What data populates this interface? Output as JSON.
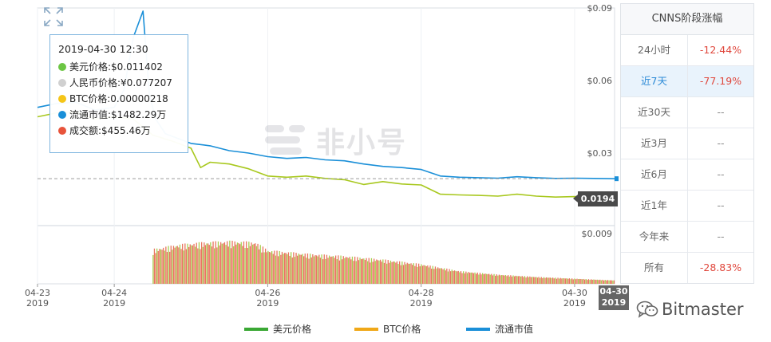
{
  "tooltip": {
    "time": "2019-04-30 12:30",
    "rows": [
      {
        "color": "#6cc644",
        "text": "美元价格:$0.011402"
      },
      {
        "color": "#d0d0d0",
        "text": "人民币价格:¥0.077207"
      },
      {
        "color": "#f5c518",
        "text": "BTC价格:0.00000218"
      },
      {
        "color": "#1a8fd8",
        "text": "流通市值:$1482.29万"
      },
      {
        "color": "#e8543b",
        "text": "成交额:$455.46万"
      }
    ]
  },
  "watermark": {
    "text": "非小号"
  },
  "price_badge": "0.0194",
  "date_badge": {
    "line1": "04-30",
    "line2": "2019"
  },
  "legend": [
    {
      "name": "美元价格",
      "color": "#3aa834"
    },
    {
      "name": "BTC价格",
      "color": "#f0a818"
    },
    {
      "name": "流通市值",
      "color": "#1a8fd8"
    }
  ],
  "period_panel": {
    "title": "CNNS阶段涨幅",
    "rows": [
      {
        "name": "24小时",
        "value": "-12.44%",
        "active": false
      },
      {
        "name": "近7天",
        "value": "-77.19%",
        "active": true
      },
      {
        "name": "近30天",
        "value": "--",
        "active": false
      },
      {
        "name": "近3月",
        "value": "--",
        "active": false
      },
      {
        "name": "近6月",
        "value": "--",
        "active": false
      },
      {
        "name": "近1年",
        "value": "--",
        "active": false
      },
      {
        "name": "今年来",
        "value": "--",
        "active": false
      },
      {
        "name": "所有",
        "value": "-28.83%",
        "active": false
      }
    ]
  },
  "brand": {
    "text": "Bitmaster"
  },
  "chart_data": {
    "type": "line",
    "x_tick_labels": [
      {
        "x": "2019-04-23 00:00",
        "line1": "04-23",
        "line2": "2019"
      },
      {
        "x": "2019-04-24 00:00",
        "line1": "04-24",
        "line2": "2019"
      },
      {
        "x": "2019-04-26 00:00",
        "line1": "04-26",
        "line2": "2019"
      },
      {
        "x": "2019-04-28 00:00",
        "line1": "04-28",
        "line2": "2019"
      },
      {
        "x": "2019-04-30 00:00",
        "line1": "04-30",
        "line2": "2019"
      }
    ],
    "x_range": [
      "2019-04-23 00:00",
      "2019-04-30 12:30"
    ],
    "y_ticks": [
      0.03,
      0.06,
      0.09
    ],
    "y_tick_labels": [
      "$0.03",
      "$0.06",
      "$0.09"
    ],
    "ylim": [
      0.0,
      0.09
    ],
    "volume_tick": {
      "value": 0.009,
      "label": "$0.009"
    },
    "crosshair_y": 0.0194,
    "series": [
      {
        "name": "流通市值",
        "color": "#1a8fd8",
        "points": [
          [
            "2019-04-23 00:00",
            0.0489
          ],
          [
            "2019-04-23 06:00",
            0.0505
          ],
          [
            "2019-04-23 12:00",
            0.051
          ],
          [
            "2019-04-23 18:00",
            0.0478
          ],
          [
            "2019-04-24 00:00",
            0.0489
          ],
          [
            "2019-04-24 03:00",
            0.056
          ],
          [
            "2019-04-24 06:00",
            0.078
          ],
          [
            "2019-04-24 09:00",
            0.0887
          ],
          [
            "2019-04-24 11:00",
            0.054
          ],
          [
            "2019-04-24 13:00",
            0.044
          ],
          [
            "2019-04-24 16:00",
            0.038
          ],
          [
            "2019-04-24 20:00",
            0.036
          ],
          [
            "2019-04-25 00:00",
            0.034
          ],
          [
            "2019-04-25 06:00",
            0.033
          ],
          [
            "2019-04-25 12:00",
            0.031
          ],
          [
            "2019-04-25 18:00",
            0.03
          ],
          [
            "2019-04-26 00:00",
            0.0285
          ],
          [
            "2019-04-26 06:00",
            0.0278
          ],
          [
            "2019-04-26 12:00",
            0.0282
          ],
          [
            "2019-04-26 18:00",
            0.0272
          ],
          [
            "2019-04-27 00:00",
            0.0268
          ],
          [
            "2019-04-27 06:00",
            0.0255
          ],
          [
            "2019-04-27 12:00",
            0.0245
          ],
          [
            "2019-04-27 18:00",
            0.024
          ],
          [
            "2019-04-28 00:00",
            0.0232
          ],
          [
            "2019-04-28 06:00",
            0.0205
          ],
          [
            "2019-04-28 12:00",
            0.02
          ],
          [
            "2019-04-28 18:00",
            0.0198
          ],
          [
            "2019-04-29 00:00",
            0.0196
          ],
          [
            "2019-04-29 06:00",
            0.0202
          ],
          [
            "2019-04-29 12:00",
            0.0198
          ],
          [
            "2019-04-29 18:00",
            0.0195
          ],
          [
            "2019-04-30 00:00",
            0.0196
          ],
          [
            "2019-04-30 06:00",
            0.0195
          ],
          [
            "2019-04-30 12:30",
            0.0194
          ]
        ]
      },
      {
        "name": "美元价格",
        "color": "#a8c81e",
        "points": [
          [
            "2019-04-23 00:00",
            0.045
          ],
          [
            "2019-04-23 06:00",
            0.0466
          ],
          [
            "2019-04-23 12:00",
            0.047
          ],
          [
            "2019-04-23 18:00",
            0.044
          ],
          [
            "2019-04-24 00:00",
            0.045
          ],
          [
            "2019-04-24 06:00",
            0.044
          ],
          [
            "2019-04-24 12:00",
            0.0375
          ],
          [
            "2019-04-24 18:00",
            0.035
          ],
          [
            "2019-04-25 00:00",
            0.032
          ],
          [
            "2019-04-25 03:00",
            0.024
          ],
          [
            "2019-04-25 06:00",
            0.0262
          ],
          [
            "2019-04-25 12:00",
            0.0255
          ],
          [
            "2019-04-25 18:00",
            0.0235
          ],
          [
            "2019-04-26 00:00",
            0.0205
          ],
          [
            "2019-04-26 06:00",
            0.02
          ],
          [
            "2019-04-26 12:00",
            0.0205
          ],
          [
            "2019-04-26 18:00",
            0.0195
          ],
          [
            "2019-04-27 00:00",
            0.019
          ],
          [
            "2019-04-27 06:00",
            0.017
          ],
          [
            "2019-04-27 12:00",
            0.0182
          ],
          [
            "2019-04-27 18:00",
            0.0172
          ],
          [
            "2019-04-28 00:00",
            0.0168
          ],
          [
            "2019-04-28 06:00",
            0.013
          ],
          [
            "2019-04-28 12:00",
            0.0127
          ],
          [
            "2019-04-28 18:00",
            0.0125
          ],
          [
            "2019-04-29 00:00",
            0.0122
          ],
          [
            "2019-04-29 06:00",
            0.013
          ],
          [
            "2019-04-29 12:00",
            0.0122
          ],
          [
            "2019-04-29 18:00",
            0.0118
          ],
          [
            "2019-04-30 00:00",
            0.012
          ],
          [
            "2019-04-30 06:00",
            0.0118
          ],
          [
            "2019-04-30 12:30",
            0.0114
          ]
        ]
      }
    ],
    "volume": {
      "name": "成交额",
      "colors": [
        "#e8765f",
        "#a8cf4f"
      ],
      "points": [
        [
          "2019-04-24 12:00",
          0.006
        ],
        [
          "2019-04-24 20:00",
          0.0068
        ],
        [
          "2019-04-25 04:00",
          0.0072
        ],
        [
          "2019-04-25 12:00",
          0.0074
        ],
        [
          "2019-04-25 20:00",
          0.0072
        ],
        [
          "2019-04-26 00:00",
          0.0058
        ],
        [
          "2019-04-26 12:00",
          0.0052
        ],
        [
          "2019-04-27 00:00",
          0.0048
        ],
        [
          "2019-04-27 12:00",
          0.0042
        ],
        [
          "2019-04-28 00:00",
          0.0034
        ],
        [
          "2019-04-28 12:00",
          0.0022
        ],
        [
          "2019-04-29 00:00",
          0.0016
        ],
        [
          "2019-04-29 12:00",
          0.0012
        ],
        [
          "2019-04-30 00:00",
          0.0009
        ],
        [
          "2019-04-30 12:30",
          0.0006
        ]
      ]
    }
  }
}
